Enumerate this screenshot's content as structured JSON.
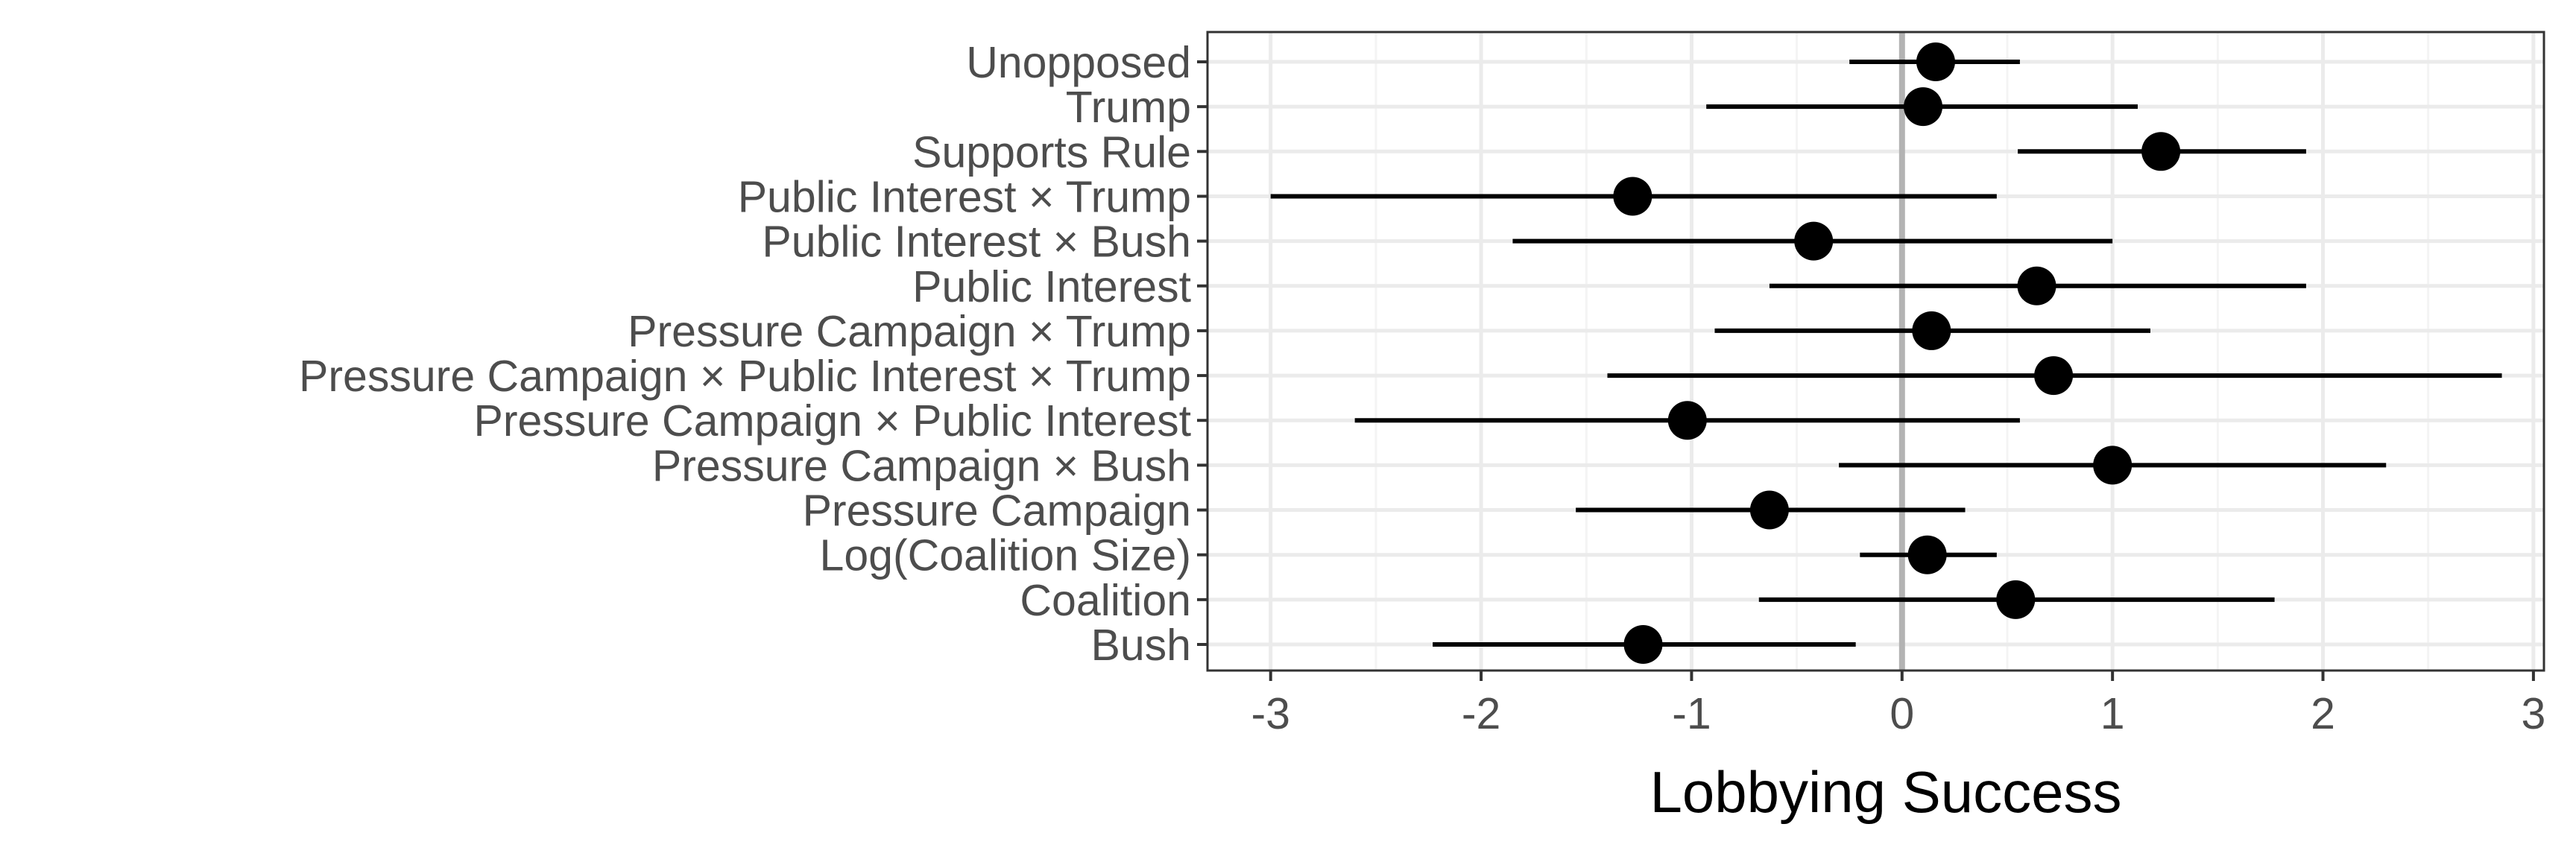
{
  "chart_data": {
    "type": "scatter",
    "subtype": "coefficient-plot-with-intervals",
    "title": "",
    "xlabel": "Lobbying Success",
    "ylabel": "",
    "xlim": [
      -3.3,
      3.05
    ],
    "x_ticks": [
      -3,
      -2,
      -1,
      0,
      1,
      2,
      3
    ],
    "x_tick_labels": [
      "-3",
      "-2",
      "-1",
      "0",
      "1",
      "2",
      "3"
    ],
    "reference_line": 0,
    "grid": true,
    "legend": "none",
    "series": [
      {
        "terms": [
          "Unopposed",
          "Trump",
          "Supports Rule",
          "Public Interest × Trump",
          "Public Interest × Bush",
          "Public Interest",
          "Pressure Campaign × Trump",
          "Pressure Campaign × Public Interest × Trump",
          "Pressure Campaign × Public Interest",
          "Pressure Campaign × Bush",
          "Pressure Campaign",
          "Log(Coalition Size)",
          "Coalition",
          "Bush"
        ],
        "estimate": [
          0.16,
          0.1,
          1.23,
          -1.28,
          -0.42,
          0.64,
          0.14,
          0.72,
          -1.02,
          1.0,
          -0.63,
          0.12,
          0.54,
          -1.23
        ],
        "lower": [
          -0.25,
          -0.93,
          0.55,
          -3.0,
          -1.85,
          -0.63,
          -0.89,
          -1.4,
          -2.6,
          -0.3,
          -1.55,
          -0.2,
          -0.68,
          -2.23
        ],
        "upper": [
          0.56,
          1.12,
          1.92,
          0.45,
          1.0,
          1.92,
          1.18,
          2.85,
          0.56,
          2.3,
          0.3,
          0.45,
          1.77,
          -0.22
        ]
      }
    ]
  },
  "colors": {
    "panel_border": "#333333",
    "grid_major": "#ebebeb",
    "grid_minor": "#f4f4f4",
    "reference_line": "#b3b3b3",
    "marks": "#000000",
    "tick_text": "#4d4d4d"
  }
}
